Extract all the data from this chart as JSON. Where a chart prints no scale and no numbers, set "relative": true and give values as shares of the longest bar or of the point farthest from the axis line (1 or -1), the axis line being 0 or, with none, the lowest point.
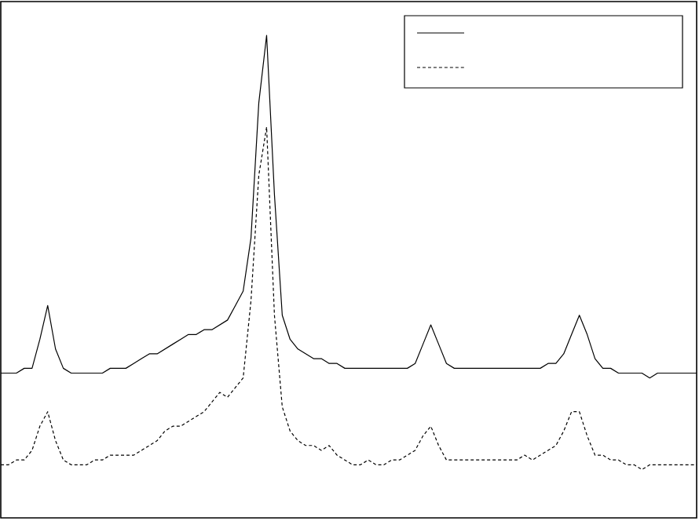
{
  "chart_data": {
    "type": "line",
    "relative": true,
    "categories": [
      null,
      null,
      null,
      null,
      null,
      null,
      null,
      null,
      null,
      null,
      null,
      null,
      null,
      null,
      null,
      null,
      null,
      null,
      null,
      null,
      null,
      null,
      null,
      null,
      null,
      null,
      null,
      null,
      null,
      null,
      null,
      null,
      null,
      null,
      null,
      null,
      null,
      null,
      null,
      null,
      null,
      null,
      null,
      null,
      null,
      null,
      null,
      null,
      null,
      null,
      null,
      null,
      null,
      null,
      null,
      null,
      null,
      null,
      null,
      null,
      null,
      null,
      null,
      null,
      null,
      null,
      null,
      null,
      null,
      null,
      null,
      null,
      null,
      null,
      null,
      null,
      null,
      null,
      null,
      null,
      null,
      null,
      null,
      null,
      null,
      null,
      null,
      null,
      null,
      null
    ],
    "series": [
      {
        "color": "#000000",
        "line_style": "solid",
        "values": [
          0.3,
          0.3,
          0.3,
          0.31,
          0.31,
          0.37,
          0.44,
          0.35,
          0.31,
          0.3,
          0.3,
          0.3,
          0.3,
          0.3,
          0.31,
          0.31,
          0.31,
          0.32,
          0.33,
          0.34,
          0.34,
          0.35,
          0.36,
          0.37,
          0.38,
          0.38,
          0.39,
          0.39,
          0.4,
          0.41,
          0.44,
          0.47,
          0.58,
          0.86,
          1.0,
          0.67,
          0.42,
          0.37,
          0.35,
          0.34,
          0.33,
          0.33,
          0.32,
          0.32,
          0.31,
          0.31,
          0.31,
          0.31,
          0.31,
          0.31,
          0.31,
          0.31,
          0.31,
          0.32,
          0.36,
          0.4,
          0.36,
          0.32,
          0.31,
          0.31,
          0.31,
          0.31,
          0.31,
          0.31,
          0.31,
          0.31,
          0.31,
          0.31,
          0.31,
          0.31,
          0.32,
          0.32,
          0.34,
          0.38,
          0.42,
          0.38,
          0.33,
          0.31,
          0.31,
          0.3,
          0.3,
          0.3,
          0.3,
          0.29,
          0.3,
          0.3,
          0.3,
          0.3,
          0.3,
          0.3
        ]
      },
      {
        "color": "#000000",
        "line_style": "dashed",
        "values": [
          0.11,
          0.11,
          0.12,
          0.12,
          0.14,
          0.19,
          0.22,
          0.16,
          0.12,
          0.11,
          0.11,
          0.11,
          0.12,
          0.12,
          0.13,
          0.13,
          0.13,
          0.13,
          0.14,
          0.15,
          0.16,
          0.18,
          0.19,
          0.19,
          0.2,
          0.21,
          0.22,
          0.24,
          0.26,
          0.25,
          0.27,
          0.29,
          0.45,
          0.71,
          0.81,
          0.42,
          0.23,
          0.18,
          0.16,
          0.15,
          0.15,
          0.14,
          0.15,
          0.13,
          0.12,
          0.11,
          0.11,
          0.12,
          0.11,
          0.11,
          0.12,
          0.12,
          0.13,
          0.14,
          0.17,
          0.19,
          0.15,
          0.12,
          0.12,
          0.12,
          0.12,
          0.12,
          0.12,
          0.12,
          0.12,
          0.12,
          0.12,
          0.13,
          0.12,
          0.13,
          0.14,
          0.15,
          0.18,
          0.22,
          0.22,
          0.17,
          0.13,
          0.13,
          0.12,
          0.12,
          0.11,
          0.11,
          0.1,
          0.11,
          0.11,
          0.11,
          0.11,
          0.11,
          0.11,
          0.11
        ]
      }
    ]
  }
}
